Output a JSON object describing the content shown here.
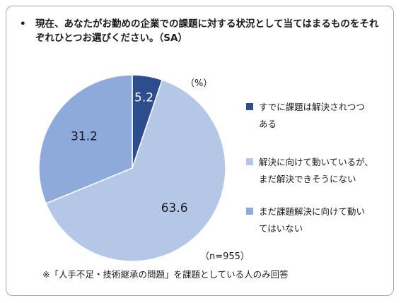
{
  "question": {
    "bullet": "•",
    "text": "現在、あなたがお勤めの企業での課題に対する状況として当てはまるものをそれぞれひとつお選びください。（SA）"
  },
  "unit": "（%）",
  "sample": "（n=955）",
  "footnote": "※「人手不足・技術継承の問題」を課題としている人のみ回答",
  "chart_data": {
    "type": "pie",
    "title": "",
    "unit": "%",
    "start_angle_deg": 0,
    "direction": "clockwise",
    "slices": [
      {
        "label": "すでに課題は解決されつつ\nある",
        "value": 5.2,
        "color": "#2e4d8f",
        "label_color": "#ffffff"
      },
      {
        "label": "解決に向けて動いているが、\nまだ解決できそうにない",
        "value": 63.6,
        "color": "#b4c7e7",
        "label_color": "#1a1a1a"
      },
      {
        "label": "まだ課題解決に向けて動い\nてはいない",
        "value": 31.2,
        "color": "#8eaadb",
        "label_color": "#1a1a1a"
      }
    ],
    "legend_position": "right"
  }
}
